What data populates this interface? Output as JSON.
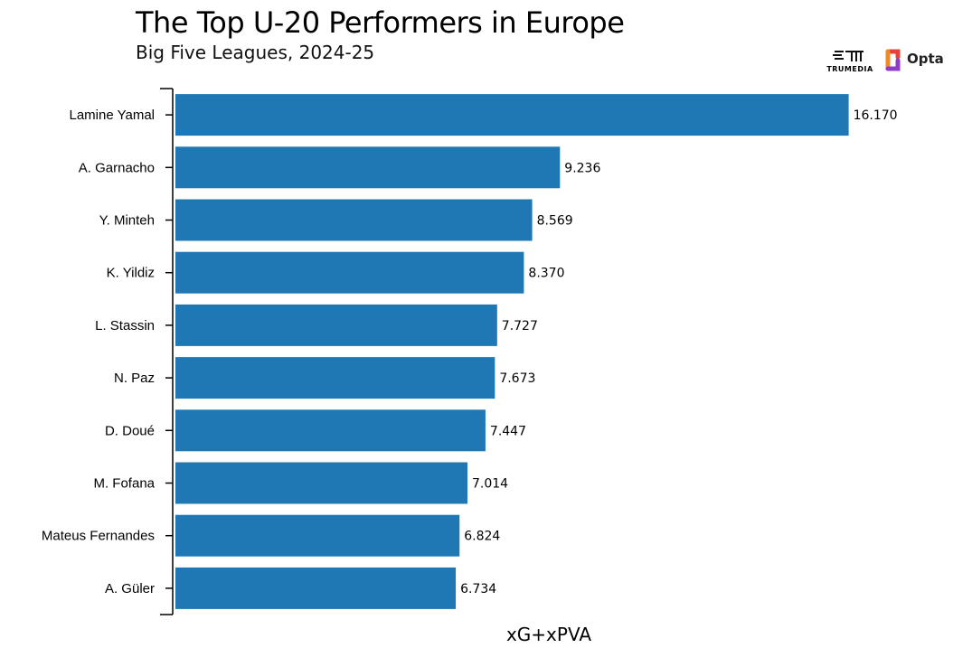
{
  "chart_data": {
    "type": "bar",
    "orientation": "horizontal",
    "title": "The Top U-20 Performers in Europe",
    "subtitle": "Big Five Leagues, 2024-25",
    "xlabel": "xG+xPVA",
    "ylabel": "",
    "categories": [
      "Lamine Yamal",
      "A. Garnacho",
      "Y. Minteh",
      "K. Yildiz",
      "L. Stassin",
      "N. Paz",
      "D. Doué",
      "M. Fofana",
      "Mateus Fernandes",
      "A. Güler"
    ],
    "values": [
      16.17,
      9.236,
      8.569,
      8.37,
      7.727,
      7.673,
      7.447,
      7.014,
      6.824,
      6.734
    ],
    "value_labels": [
      "16.170",
      "9.236",
      "8.569",
      "8.370",
      "7.727",
      "7.673",
      "7.447",
      "7.014",
      "6.824",
      "6.734"
    ],
    "xlim": [
      0,
      16.7
    ],
    "grid": false,
    "colors": {
      "bar": "#1f77b4"
    }
  },
  "logos": {
    "trumedia": "TRUMEDIA",
    "opta": "Opta"
  }
}
